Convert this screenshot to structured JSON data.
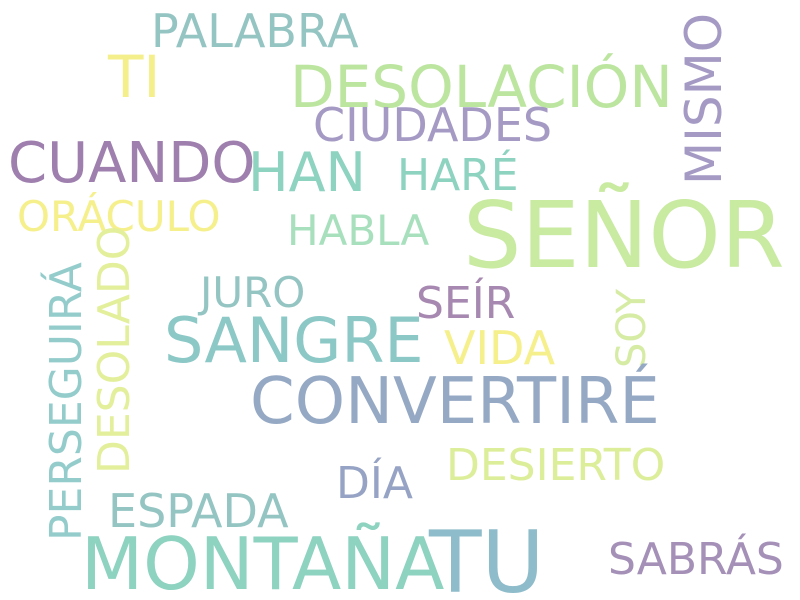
{
  "words": [
    {
      "text": "PALABRA",
      "color": "#94c5c3"
    },
    {
      "text": "TI",
      "color": "#f4ef8a"
    },
    {
      "text": "DESOLACIÓN",
      "color": "#bce5a0"
    },
    {
      "text": "MISMO",
      "color": "#a59ac4"
    },
    {
      "text": "CIUDADES",
      "color": "#a59ac4"
    },
    {
      "text": "CUANDO",
      "color": "#9e7fae"
    },
    {
      "text": "HAN",
      "color": "#8ed2c0"
    },
    {
      "text": "HARÉ",
      "color": "#8ed2c0"
    },
    {
      "text": "SEÑOR",
      "color": "#c9eaa1"
    },
    {
      "text": "ORÁCULO",
      "color": "#f5ef8c"
    },
    {
      "text": "HABLA",
      "color": "#a8e0bd"
    },
    {
      "text": "PERSEGUIRÁ",
      "color": "#94cccc"
    },
    {
      "text": "DESOLADO",
      "color": "#e3ef9a"
    },
    {
      "text": "JURO",
      "color": "#94c5c3"
    },
    {
      "text": "SEÍR",
      "color": "#a788b0"
    },
    {
      "text": "SOY",
      "color": "#d6eca5"
    },
    {
      "text": "SANGRE",
      "color": "#8bc8c6"
    },
    {
      "text": "VIDA",
      "color": "#f5ef8c"
    },
    {
      "text": "CONVERTIRÉ",
      "color": "#96a9c4"
    },
    {
      "text": "DÍA",
      "color": "#96a3c4"
    },
    {
      "text": "DESIERTO",
      "color": "#dcee9a"
    },
    {
      "text": "ESPADA",
      "color": "#94c5c3"
    },
    {
      "text": "MONTAÑA",
      "color": "#8ed2c0"
    },
    {
      "text": "TU",
      "color": "#8fbcca"
    },
    {
      "text": "SABRÁS",
      "color": "#a590b8"
    }
  ]
}
